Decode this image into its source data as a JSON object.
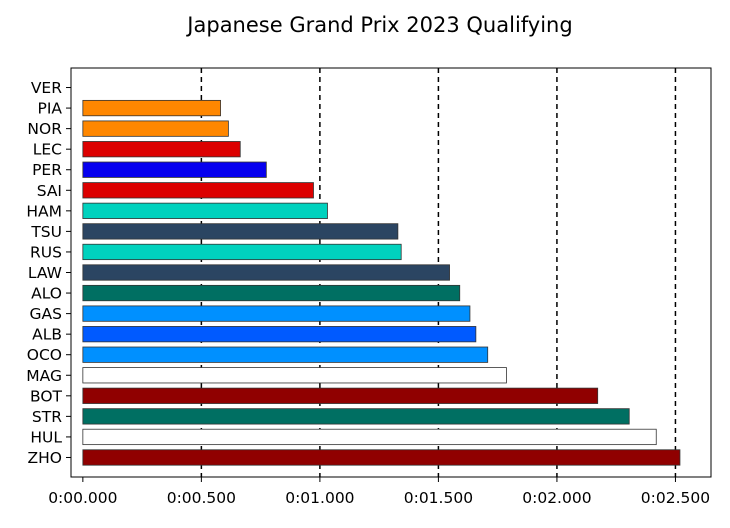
{
  "chart_data": {
    "type": "bar",
    "orientation": "horizontal",
    "title": "Japanese Grand Prix 2023 Qualifying",
    "xlabel": "",
    "ylabel": "",
    "categories": [
      "VER",
      "PIA",
      "NOR",
      "LEC",
      "PER",
      "SAI",
      "HAM",
      "TSU",
      "RUS",
      "LAW",
      "ALO",
      "GAS",
      "ALB",
      "OCO",
      "MAG",
      "BOT",
      "STR",
      "HUL",
      "ZHO"
    ],
    "values": [
      0.0,
      0.581,
      0.614,
      0.664,
      0.774,
      0.973,
      1.032,
      1.329,
      1.343,
      1.547,
      1.59,
      1.633,
      1.658,
      1.708,
      1.787,
      2.172,
      2.305,
      2.419,
      2.519
    ],
    "colors": [
      "#0600ef",
      "#ff8700",
      "#ff8700",
      "#dc0000",
      "#0600ef",
      "#dc0000",
      "#00d2be",
      "#2b4562",
      "#00d2be",
      "#2b4562",
      "#006f62",
      "#0090ff",
      "#005aff",
      "#0090ff",
      "#ffffff",
      "#900000",
      "#006f62",
      "#ffffff",
      "#900000"
    ],
    "xlim": [
      -0.05,
      2.65
    ],
    "xticks": [
      0.0,
      0.5,
      1.0,
      1.5,
      2.0,
      2.5
    ],
    "xtick_labels": [
      "0:00.000",
      "0:00.500",
      "0:01.000",
      "0:01.500",
      "0:02.000",
      "0:02.500"
    ],
    "grid": "x-major, dashed, black",
    "legend": "none"
  }
}
